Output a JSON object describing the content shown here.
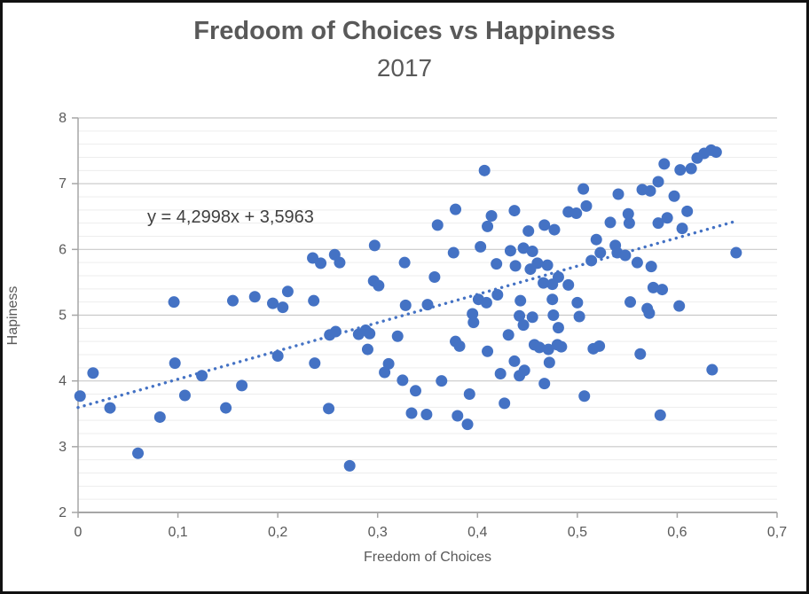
{
  "window": {
    "title": "Fredoom of Choices vs Happiness",
    "subtitle": "2017"
  },
  "colors": {
    "marker": "#4472C4",
    "trendline": "#4472C4",
    "title_text": "#595959",
    "axis_text": "#595959",
    "equation_text": "#404040",
    "major_grid": "#C9C9C9",
    "minor_grid": "#EDEDED",
    "axis_line": "#A6A6A6",
    "frame": "#111111",
    "background": "#FFFFFF"
  },
  "chart_data": {
    "type": "scatter",
    "title": "Fredoom of Choices vs Happiness",
    "subtitle": "2017",
    "xlabel": "Freedom of Choices",
    "ylabel": "Hapiness",
    "xlim": [
      0,
      0.7
    ],
    "ylim": [
      2,
      8
    ],
    "x_major_unit": 0.1,
    "y_major_unit": 1,
    "y_minor_unit": 0.2,
    "x_tick_labels": [
      "0",
      "0,1",
      "0,2",
      "0,3",
      "0,4",
      "0,5",
      "0,6",
      "0,7"
    ],
    "y_tick_labels": [
      "2",
      "3",
      "4",
      "5",
      "6",
      "7",
      "8"
    ],
    "grid": "horizontal major and minor, no vertical gridlines",
    "legend": "none",
    "trendline": {
      "label": "y = 4,2998x + 3,5963",
      "slope": 4.2998,
      "intercept": 3.5963,
      "x_start": 0,
      "x_end": 0.66,
      "style": "dotted"
    },
    "points": [
      [
        0.002,
        3.77
      ],
      [
        0.015,
        4.12
      ],
      [
        0.032,
        3.59
      ],
      [
        0.06,
        2.9
      ],
      [
        0.082,
        3.45
      ],
      [
        0.096,
        5.2
      ],
      [
        0.097,
        4.27
      ],
      [
        0.107,
        3.78
      ],
      [
        0.124,
        4.08
      ],
      [
        0.148,
        3.59
      ],
      [
        0.155,
        5.22
      ],
      [
        0.164,
        3.93
      ],
      [
        0.177,
        5.28
      ],
      [
        0.195,
        5.18
      ],
      [
        0.2,
        4.38
      ],
      [
        0.205,
        5.12
      ],
      [
        0.21,
        5.36
      ],
      [
        0.235,
        5.87
      ],
      [
        0.236,
        5.22
      ],
      [
        0.237,
        4.27
      ],
      [
        0.243,
        5.79
      ],
      [
        0.251,
        3.58
      ],
      [
        0.252,
        4.7
      ],
      [
        0.257,
        5.92
      ],
      [
        0.258,
        4.75
      ],
      [
        0.262,
        5.8
      ],
      [
        0.272,
        2.71
      ],
      [
        0.281,
        4.71
      ],
      [
        0.288,
        4.77
      ],
      [
        0.292,
        4.72
      ],
      [
        0.29,
        4.48
      ],
      [
        0.296,
        5.52
      ],
      [
        0.297,
        6.06
      ],
      [
        0.301,
        5.45
      ],
      [
        0.307,
        4.13
      ],
      [
        0.311,
        4.26
      ],
      [
        0.32,
        4.68
      ],
      [
        0.325,
        4.01
      ],
      [
        0.327,
        5.8
      ],
      [
        0.328,
        5.15
      ],
      [
        0.334,
        3.51
      ],
      [
        0.338,
        3.85
      ],
      [
        0.349,
        3.49
      ],
      [
        0.35,
        5.16
      ],
      [
        0.357,
        5.58
      ],
      [
        0.36,
        6.37
      ],
      [
        0.364,
        4.0
      ],
      [
        0.376,
        5.95
      ],
      [
        0.378,
        6.61
      ],
      [
        0.378,
        4.6
      ],
      [
        0.382,
        4.53
      ],
      [
        0.38,
        3.47
      ],
      [
        0.39,
        3.34
      ],
      [
        0.392,
        3.8
      ],
      [
        0.395,
        5.02
      ],
      [
        0.396,
        4.89
      ],
      [
        0.401,
        5.24
      ],
      [
        0.403,
        6.04
      ],
      [
        0.407,
        7.2
      ],
      [
        0.409,
        5.19
      ],
      [
        0.41,
        6.35
      ],
      [
        0.41,
        4.45
      ],
      [
        0.414,
        6.51
      ],
      [
        0.419,
        5.78
      ],
      [
        0.42,
        5.31
      ],
      [
        0.423,
        4.11
      ],
      [
        0.427,
        3.66
      ],
      [
        0.431,
        4.7
      ],
      [
        0.433,
        5.98
      ],
      [
        0.437,
        6.59
      ],
      [
        0.437,
        4.3
      ],
      [
        0.438,
        5.75
      ],
      [
        0.442,
        4.08
      ],
      [
        0.447,
        4.16
      ],
      [
        0.443,
        5.22
      ],
      [
        0.442,
        4.99
      ],
      [
        0.446,
        4.85
      ],
      [
        0.446,
        6.02
      ],
      [
        0.451,
        6.28
      ],
      [
        0.453,
        5.7
      ],
      [
        0.455,
        5.97
      ],
      [
        0.455,
        4.97
      ],
      [
        0.457,
        4.55
      ],
      [
        0.46,
        5.79
      ],
      [
        0.462,
        4.51
      ],
      [
        0.466,
        5.49
      ],
      [
        0.467,
        6.37
      ],
      [
        0.467,
        3.96
      ],
      [
        0.47,
        5.76
      ],
      [
        0.471,
        4.48
      ],
      [
        0.472,
        4.28
      ],
      [
        0.475,
        5.24
      ],
      [
        0.475,
        5.47
      ],
      [
        0.477,
        6.3
      ],
      [
        0.476,
        5.0
      ],
      [
        0.48,
        4.55
      ],
      [
        0.481,
        5.58
      ],
      [
        0.481,
        4.81
      ],
      [
        0.484,
        4.52
      ],
      [
        0.491,
        5.46
      ],
      [
        0.491,
        6.57
      ],
      [
        0.499,
        6.55
      ],
      [
        0.5,
        5.19
      ],
      [
        0.502,
        4.98
      ],
      [
        0.506,
        6.92
      ],
      [
        0.507,
        3.77
      ],
      [
        0.509,
        6.66
      ],
      [
        0.514,
        5.83
      ],
      [
        0.516,
        4.49
      ],
      [
        0.519,
        6.15
      ],
      [
        0.522,
        4.53
      ],
      [
        0.523,
        5.95
      ],
      [
        0.533,
        6.41
      ],
      [
        0.538,
        6.06
      ],
      [
        0.54,
        5.95
      ],
      [
        0.541,
        6.84
      ],
      [
        0.548,
        5.91
      ],
      [
        0.551,
        6.54
      ],
      [
        0.552,
        6.4
      ],
      [
        0.553,
        5.2
      ],
      [
        0.56,
        5.8
      ],
      [
        0.563,
        4.41
      ],
      [
        0.565,
        6.91
      ],
      [
        0.57,
        5.1
      ],
      [
        0.572,
        5.03
      ],
      [
        0.573,
        6.89
      ],
      [
        0.574,
        5.74
      ],
      [
        0.576,
        5.42
      ],
      [
        0.581,
        7.03
      ],
      [
        0.581,
        6.4
      ],
      [
        0.583,
        3.48
      ],
      [
        0.585,
        5.39
      ],
      [
        0.587,
        7.3
      ],
      [
        0.59,
        6.48
      ],
      [
        0.597,
        6.81
      ],
      [
        0.602,
        5.14
      ],
      [
        0.603,
        7.21
      ],
      [
        0.605,
        6.32
      ],
      [
        0.61,
        6.58
      ],
      [
        0.614,
        7.23
      ],
      [
        0.62,
        7.39
      ],
      [
        0.627,
        7.46
      ],
      [
        0.634,
        7.51
      ],
      [
        0.639,
        7.48
      ],
      [
        0.635,
        4.17
      ],
      [
        0.659,
        5.95
      ]
    ]
  }
}
